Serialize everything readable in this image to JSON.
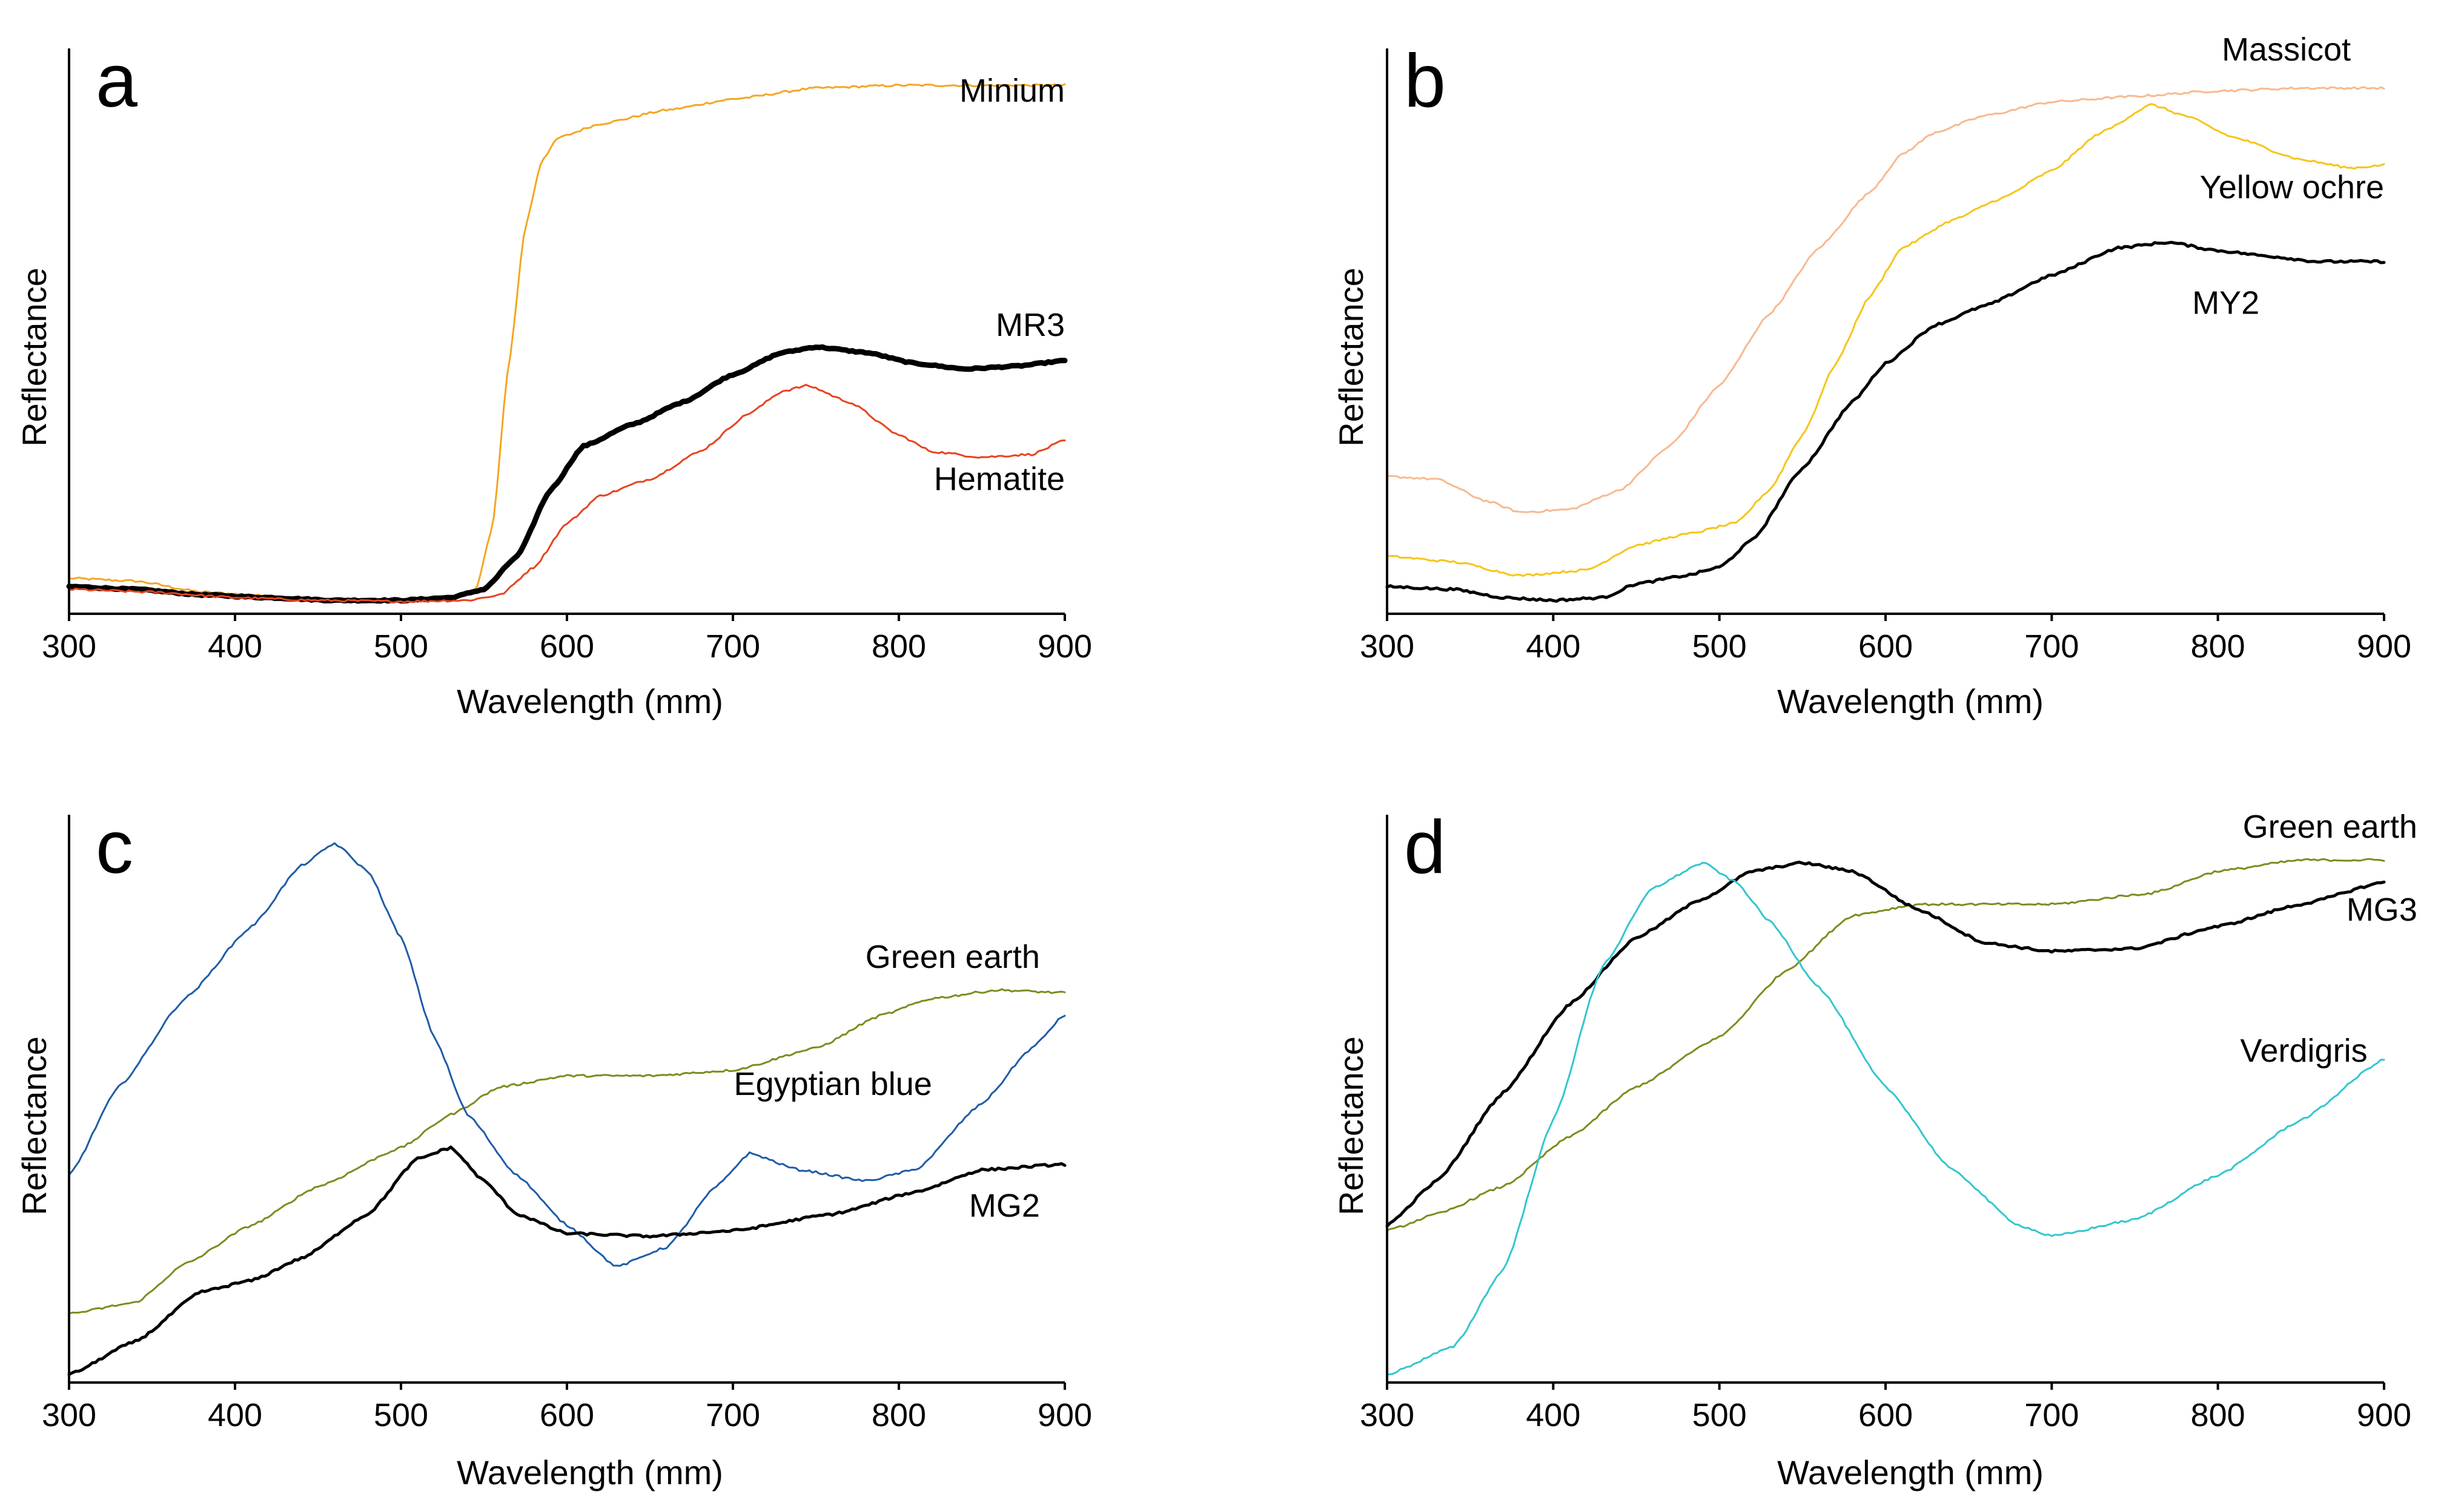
{
  "figure": {
    "description_panels": "four reflectance spectra panels"
  },
  "chart_data": [
    {
      "type": "line",
      "panel": "a",
      "xlabel": "Wavelength (mm)",
      "ylabel": "Reflectance",
      "xlim": [
        300,
        900
      ],
      "ylim": [
        0,
        1
      ],
      "xticks": [
        "300",
        "400",
        "500",
        "600",
        "700",
        "800",
        "900"
      ],
      "series": [
        {
          "name": "Minium",
          "color": "#F5A623",
          "width": "thin",
          "label_anchor": "end",
          "label_at": [
            900,
            0.945
          ],
          "points": [
            [
              300,
              0.06
            ],
            [
              340,
              0.055
            ],
            [
              380,
              0.035
            ],
            [
              420,
              0.028
            ],
            [
              460,
              0.022
            ],
            [
              500,
              0.02
            ],
            [
              530,
              0.022
            ],
            [
              545,
              0.04
            ],
            [
              555,
              0.15
            ],
            [
              565,
              0.45
            ],
            [
              575,
              0.7
            ],
            [
              585,
              0.82
            ],
            [
              595,
              0.86
            ],
            [
              620,
              0.885
            ],
            [
              660,
              0.91
            ],
            [
              700,
              0.93
            ],
            [
              750,
              0.95
            ],
            [
              800,
              0.955
            ],
            [
              850,
              0.955
            ],
            [
              900,
              0.955
            ]
          ]
        },
        {
          "name": "MR3",
          "color": "#000000",
          "width": "thick",
          "label_anchor": "end",
          "label_at": [
            900,
            0.52
          ],
          "points": [
            [
              300,
              0.045
            ],
            [
              340,
              0.04
            ],
            [
              380,
              0.03
            ],
            [
              420,
              0.025
            ],
            [
              460,
              0.02
            ],
            [
              500,
              0.02
            ],
            [
              530,
              0.025
            ],
            [
              550,
              0.04
            ],
            [
              570,
              0.1
            ],
            [
              590,
              0.22
            ],
            [
              610,
              0.3
            ],
            [
              640,
              0.34
            ],
            [
              670,
              0.38
            ],
            [
              700,
              0.43
            ],
            [
              730,
              0.47
            ],
            [
              750,
              0.48
            ],
            [
              780,
              0.47
            ],
            [
              810,
              0.45
            ],
            [
              840,
              0.44
            ],
            [
              870,
              0.445
            ],
            [
              900,
              0.455
            ]
          ]
        },
        {
          "name": "Hematite",
          "color": "#E8431F",
          "width": "thin",
          "label_anchor": "end",
          "label_at": [
            900,
            0.24
          ],
          "points": [
            [
              300,
              0.04
            ],
            [
              350,
              0.035
            ],
            [
              400,
              0.025
            ],
            [
              450,
              0.02
            ],
            [
              500,
              0.018
            ],
            [
              540,
              0.02
            ],
            [
              560,
              0.03
            ],
            [
              580,
              0.08
            ],
            [
              600,
              0.16
            ],
            [
              620,
              0.21
            ],
            [
              650,
              0.24
            ],
            [
              680,
              0.29
            ],
            [
              710,
              0.36
            ],
            [
              730,
              0.4
            ],
            [
              745,
              0.41
            ],
            [
              770,
              0.38
            ],
            [
              800,
              0.32
            ],
            [
              820,
              0.29
            ],
            [
              850,
              0.28
            ],
            [
              880,
              0.285
            ],
            [
              900,
              0.31
            ]
          ]
        }
      ]
    },
    {
      "type": "line",
      "panel": "b",
      "xlabel": "Wavelength (mm)",
      "ylabel": "Reflectance",
      "xlim": [
        300,
        900
      ],
      "ylim": [
        0,
        1
      ],
      "xticks": [
        "300",
        "400",
        "500",
        "600",
        "700",
        "800",
        "900"
      ],
      "series": [
        {
          "name": "Massicot",
          "color": "#F8B98F",
          "width": "thin",
          "label_anchor": "end",
          "label_at": [
            880,
            1.02
          ],
          "points": [
            [
              300,
              0.245
            ],
            [
              330,
              0.24
            ],
            [
              360,
              0.2
            ],
            [
              380,
              0.18
            ],
            [
              410,
              0.185
            ],
            [
              440,
              0.22
            ],
            [
              470,
              0.3
            ],
            [
              500,
              0.41
            ],
            [
              530,
              0.54
            ],
            [
              560,
              0.66
            ],
            [
              590,
              0.76
            ],
            [
              610,
              0.83
            ],
            [
              630,
              0.87
            ],
            [
              660,
              0.9
            ],
            [
              700,
              0.925
            ],
            [
              750,
              0.935
            ],
            [
              800,
              0.945
            ],
            [
              850,
              0.95
            ],
            [
              900,
              0.95
            ]
          ]
        },
        {
          "name": "Yellow ochre",
          "color": "#F5C518",
          "width": "thin",
          "label_anchor": "end",
          "label_at": [
            900,
            0.77
          ],
          "points": [
            [
              300,
              0.1
            ],
            [
              340,
              0.09
            ],
            [
              380,
              0.065
            ],
            [
              420,
              0.075
            ],
            [
              450,
              0.12
            ],
            [
              480,
              0.14
            ],
            [
              510,
              0.16
            ],
            [
              530,
              0.22
            ],
            [
              550,
              0.32
            ],
            [
              570,
              0.45
            ],
            [
              590,
              0.57
            ],
            [
              610,
              0.66
            ],
            [
              640,
              0.71
            ],
            [
              670,
              0.75
            ],
            [
              700,
              0.8
            ],
            [
              730,
              0.87
            ],
            [
              760,
              0.92
            ],
            [
              780,
              0.9
            ],
            [
              810,
              0.86
            ],
            [
              850,
              0.82
            ],
            [
              880,
              0.805
            ],
            [
              900,
              0.81
            ]
          ]
        },
        {
          "name": "MY2",
          "color": "#000000",
          "width": "medium",
          "label_anchor": "end",
          "label_at": [
            825,
            0.56
          ],
          "points": [
            [
              300,
              0.045
            ],
            [
              340,
              0.04
            ],
            [
              370,
              0.025
            ],
            [
              400,
              0.02
            ],
            [
              430,
              0.025
            ],
            [
              450,
              0.05
            ],
            [
              480,
              0.065
            ],
            [
              500,
              0.08
            ],
            [
              520,
              0.13
            ],
            [
              550,
              0.26
            ],
            [
              580,
              0.38
            ],
            [
              600,
              0.45
            ],
            [
              630,
              0.52
            ],
            [
              660,
              0.555
            ],
            [
              700,
              0.61
            ],
            [
              740,
              0.66
            ],
            [
              770,
              0.67
            ],
            [
              800,
              0.655
            ],
            [
              830,
              0.645
            ],
            [
              860,
              0.635
            ],
            [
              900,
              0.635
            ]
          ]
        }
      ]
    },
    {
      "type": "line",
      "panel": "c",
      "xlabel": "Wavelength (mm)",
      "ylabel": "Reflectance",
      "xlim": [
        300,
        900
      ],
      "ylim": [
        0,
        1
      ],
      "xticks": [
        "300",
        "400",
        "500",
        "600",
        "700",
        "800",
        "900"
      ],
      "series": [
        {
          "name": "Green earth",
          "color": "#808A1E",
          "width": "thin",
          "label_anchor": "end",
          "label_at": [
            885,
            0.765
          ],
          "points": [
            [
              300,
              0.12
            ],
            [
              340,
              0.14
            ],
            [
              370,
              0.21
            ],
            [
              410,
              0.28
            ],
            [
              450,
              0.35
            ],
            [
              500,
              0.42
            ],
            [
              530,
              0.48
            ],
            [
              560,
              0.53
            ],
            [
              600,
              0.55
            ],
            [
              650,
              0.55
            ],
            [
              700,
              0.56
            ],
            [
              750,
              0.6
            ],
            [
              790,
              0.66
            ],
            [
              820,
              0.69
            ],
            [
              860,
              0.705
            ],
            [
              900,
              0.7
            ]
          ]
        },
        {
          "name": "Egyptian blue",
          "color": "#1F5CA8",
          "width": "thin",
          "label_anchor": "end",
          "label_at": [
            820,
            0.535
          ],
          "points": [
            [
              300,
              0.37
            ],
            [
              330,
              0.53
            ],
            [
              370,
              0.69
            ],
            [
              410,
              0.82
            ],
            [
              440,
              0.93
            ],
            [
              460,
              0.97
            ],
            [
              480,
              0.92
            ],
            [
              500,
              0.8
            ],
            [
              520,
              0.62
            ],
            [
              540,
              0.48
            ],
            [
              570,
              0.37
            ],
            [
              600,
              0.28
            ],
            [
              630,
              0.205
            ],
            [
              660,
              0.24
            ],
            [
              690,
              0.35
            ],
            [
              710,
              0.41
            ],
            [
              740,
              0.38
            ],
            [
              780,
              0.36
            ],
            [
              810,
              0.38
            ],
            [
              850,
              0.5
            ],
            [
              880,
              0.6
            ],
            [
              900,
              0.66
            ]
          ]
        },
        {
          "name": "MG2",
          "color": "#000000",
          "width": "medium",
          "label_anchor": "end",
          "label_at": [
            885,
            0.315
          ],
          "points": [
            [
              300,
              0.01
            ],
            [
              340,
              0.07
            ],
            [
              380,
              0.16
            ],
            [
              410,
              0.18
            ],
            [
              440,
              0.22
            ],
            [
              480,
              0.3
            ],
            [
              510,
              0.4
            ],
            [
              530,
              0.42
            ],
            [
              550,
              0.36
            ],
            [
              570,
              0.3
            ],
            [
              600,
              0.265
            ],
            [
              650,
              0.26
            ],
            [
              700,
              0.27
            ],
            [
              760,
              0.3
            ],
            [
              810,
              0.34
            ],
            [
              850,
              0.38
            ],
            [
              900,
              0.39
            ]
          ]
        }
      ]
    },
    {
      "type": "line",
      "panel": "d",
      "xlabel": "Wavelength (mm)",
      "ylabel": "Reflectance",
      "xlim": [
        300,
        900
      ],
      "ylim": [
        0,
        1
      ],
      "xticks": [
        "300",
        "400",
        "500",
        "600",
        "700",
        "800",
        "900"
      ],
      "series": [
        {
          "name": "Green earth",
          "color": "#808A1E",
          "width": "thin",
          "label_anchor": "end",
          "label_at": [
            920,
            1.0
          ],
          "points": [
            [
              300,
              0.27
            ],
            [
              330,
              0.3
            ],
            [
              370,
              0.35
            ],
            [
              410,
              0.44
            ],
            [
              450,
              0.53
            ],
            [
              500,
              0.62
            ],
            [
              540,
              0.74
            ],
            [
              580,
              0.84
            ],
            [
              620,
              0.86
            ],
            [
              700,
              0.86
            ],
            [
              760,
              0.88
            ],
            [
              800,
              0.92
            ],
            [
              850,
              0.94
            ],
            [
              900,
              0.94
            ]
          ]
        },
        {
          "name": "MG3",
          "color": "#000000",
          "width": "medium",
          "label_anchor": "end",
          "label_at": [
            920,
            0.85
          ],
          "points": [
            [
              300,
              0.28
            ],
            [
              330,
              0.36
            ],
            [
              370,
              0.52
            ],
            [
              410,
              0.68
            ],
            [
              450,
              0.8
            ],
            [
              490,
              0.87
            ],
            [
              520,
              0.92
            ],
            [
              550,
              0.935
            ],
            [
              580,
              0.92
            ],
            [
              620,
              0.85
            ],
            [
              660,
              0.79
            ],
            [
              700,
              0.775
            ],
            [
              750,
              0.78
            ],
            [
              800,
              0.82
            ],
            [
              850,
              0.86
            ],
            [
              900,
              0.9
            ]
          ]
        },
        {
          "name": "Verdigris",
          "color": "#33C6CF",
          "width": "thin",
          "label_anchor": "end",
          "label_at": [
            890,
            0.595
          ],
          "points": [
            [
              300,
              0.01
            ],
            [
              340,
              0.06
            ],
            [
              370,
              0.2
            ],
            [
              400,
              0.47
            ],
            [
              430,
              0.75
            ],
            [
              460,
              0.89
            ],
            [
              490,
              0.935
            ],
            [
              510,
              0.9
            ],
            [
              530,
              0.83
            ],
            [
              560,
              0.71
            ],
            [
              600,
              0.53
            ],
            [
              640,
              0.38
            ],
            [
              680,
              0.28
            ],
            [
              700,
              0.26
            ],
            [
              750,
              0.29
            ],
            [
              800,
              0.37
            ],
            [
              850,
              0.47
            ],
            [
              900,
              0.58
            ]
          ]
        }
      ]
    }
  ]
}
